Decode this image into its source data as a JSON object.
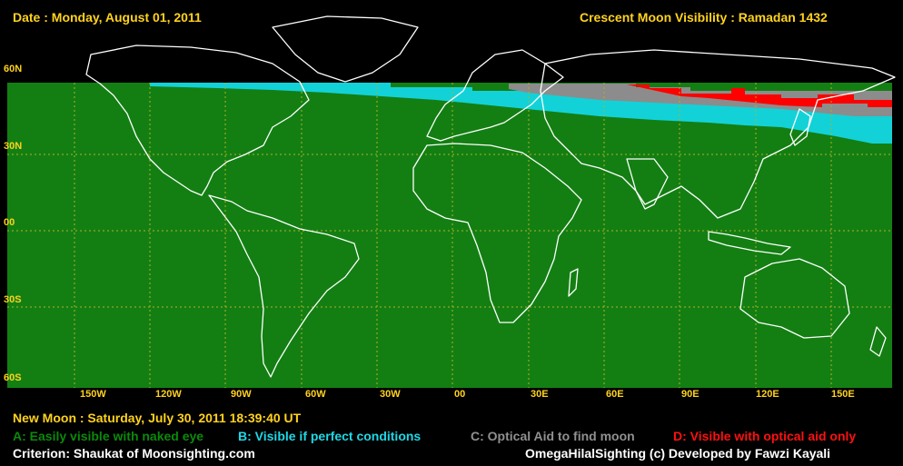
{
  "header": {
    "date": "Date : Monday, August 01, 2011",
    "title": "Crescent Moon Visibility : Ramadan  1432"
  },
  "lat_labels": [
    "60N",
    "30N",
    "00",
    "30S",
    "60S"
  ],
  "lon_labels": [
    "150W",
    "120W",
    "90W",
    "60W",
    "30W",
    "00",
    "30E",
    "60E",
    "90E",
    "120E",
    "150E"
  ],
  "footer": {
    "new_moon": "New Moon : Saturday, July 30, 2011  18:39:40  UT",
    "criterion": "Criterion: Shaukat of Moonsighting.com",
    "credit": "OmegaHilalSighting  (c)  Developed by Fawzi Kayali"
  },
  "legend": [
    {
      "code": "A",
      "text": "A: Easily visible with naked eye",
      "color": "#0a8a0a"
    },
    {
      "code": "B",
      "text": "B: Visible if perfect conditions",
      "color": "#1ed8e6"
    },
    {
      "code": "C",
      "text": "C: Optical Aid to find moon",
      "color": "#909090"
    },
    {
      "code": "D",
      "text": "D: Visible with optical aid only",
      "color": "#ff1010"
    }
  ],
  "colors": {
    "zone_a": "#137f13",
    "zone_b": "#12d2d8",
    "zone_c": "#8c8c8c",
    "zone_d": "#ff0000",
    "land_outline": "#ffffff",
    "grid": "#b0b020",
    "label": "#ffd21e"
  }
}
